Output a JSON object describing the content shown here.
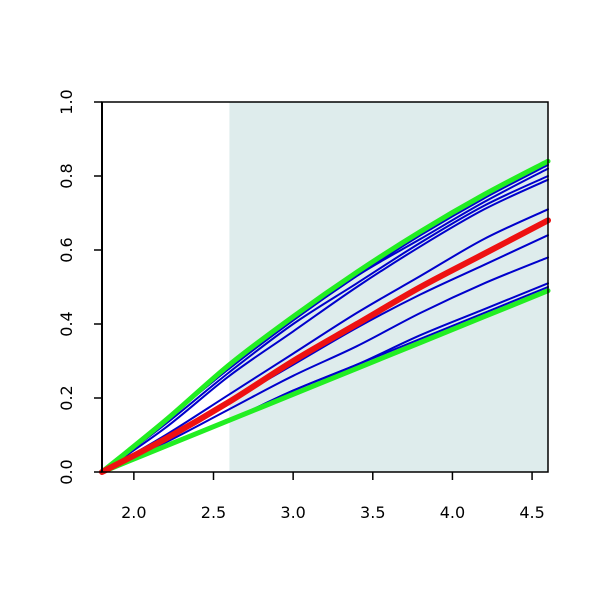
{
  "chart_data": {
    "type": "line",
    "title": "",
    "xlabel": "",
    "ylabel": "",
    "xlim": [
      1.8,
      4.6
    ],
    "ylim": [
      0.0,
      1.0
    ],
    "x_ticks": [
      {
        "value": 2.0,
        "label": "2.0"
      },
      {
        "value": 2.5,
        "label": "2.5"
      },
      {
        "value": 3.0,
        "label": "3.0"
      },
      {
        "value": 3.5,
        "label": "3.5"
      },
      {
        "value": 4.0,
        "label": "4.0"
      },
      {
        "value": 4.5,
        "label": "4.5"
      }
    ],
    "y_ticks": [
      {
        "value": 0.0,
        "label": "0.0"
      },
      {
        "value": 0.2,
        "label": "0.2"
      },
      {
        "value": 0.4,
        "label": "0.4"
      },
      {
        "value": 0.6,
        "label": "0.6"
      },
      {
        "value": 0.8,
        "label": "0.8"
      },
      {
        "value": 1.0,
        "label": "1.0"
      }
    ],
    "shaded_region": {
      "x_from": 2.6,
      "x_to": 4.6,
      "color": "#deecec"
    },
    "colors": {
      "blue": "#0000cc",
      "red": "#ee1111",
      "green": "#22ee22",
      "axis": "#000000"
    },
    "x": [
      1.8,
      2.2,
      2.6,
      3.0,
      3.4,
      3.8,
      4.2,
      4.6
    ],
    "series": [
      {
        "role": "blue",
        "values": [
          0.0,
          0.14,
          0.28,
          0.41,
          0.53,
          0.64,
          0.74,
          0.83
        ]
      },
      {
        "role": "blue",
        "values": [
          0.0,
          0.14,
          0.28,
          0.41,
          0.53,
          0.63,
          0.73,
          0.82
        ]
      },
      {
        "role": "blue",
        "values": [
          0.0,
          0.13,
          0.27,
          0.4,
          0.51,
          0.62,
          0.72,
          0.8
        ]
      },
      {
        "role": "blue",
        "values": [
          0.0,
          0.12,
          0.26,
          0.38,
          0.5,
          0.61,
          0.71,
          0.79
        ]
      },
      {
        "role": "blue",
        "values": [
          0.0,
          0.1,
          0.21,
          0.32,
          0.43,
          0.53,
          0.63,
          0.71
        ]
      },
      {
        "role": "blue",
        "values": [
          0.0,
          0.09,
          0.19,
          0.29,
          0.39,
          0.48,
          0.56,
          0.64
        ]
      },
      {
        "role": "blue",
        "values": [
          0.0,
          0.08,
          0.17,
          0.26,
          0.34,
          0.43,
          0.51,
          0.58
        ]
      },
      {
        "role": "blue",
        "values": [
          0.0,
          0.07,
          0.14,
          0.22,
          0.29,
          0.37,
          0.44,
          0.51
        ]
      },
      {
        "role": "blue",
        "values": [
          0.0,
          0.07,
          0.14,
          0.22,
          0.29,
          0.36,
          0.43,
          0.5
        ]
      },
      {
        "role": "green",
        "values": [
          0.0,
          0.14,
          0.29,
          0.42,
          0.54,
          0.65,
          0.75,
          0.84
        ]
      },
      {
        "role": "green",
        "values": [
          0.0,
          0.07,
          0.14,
          0.21,
          0.28,
          0.35,
          0.42,
          0.49
        ]
      },
      {
        "role": "red",
        "values": [
          0.0,
          0.09,
          0.19,
          0.3,
          0.4,
          0.5,
          0.59,
          0.68
        ]
      }
    ]
  }
}
